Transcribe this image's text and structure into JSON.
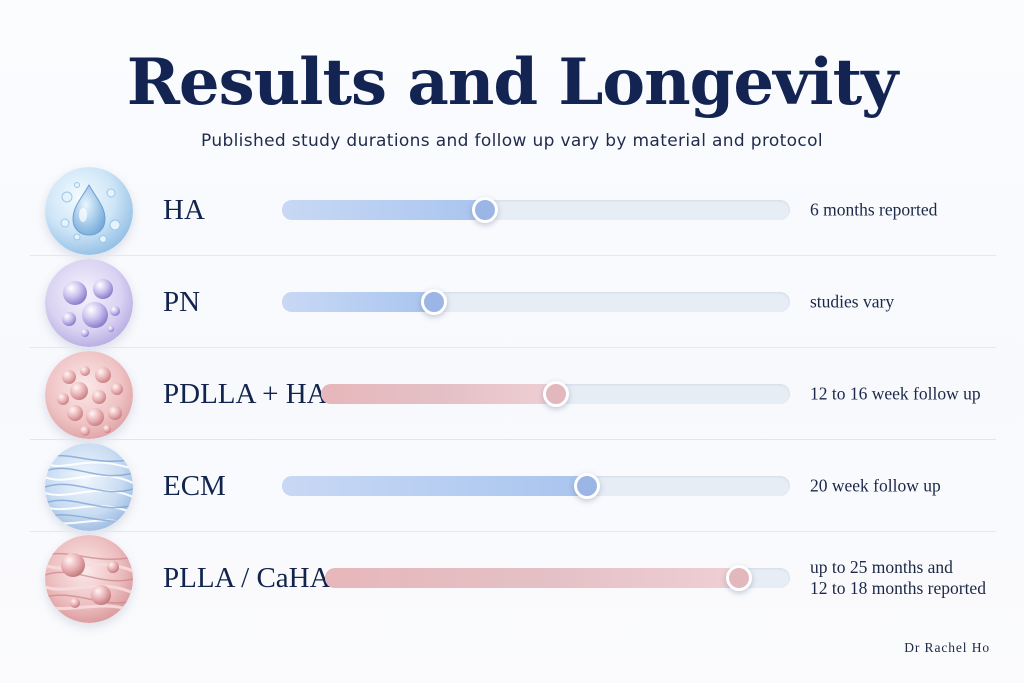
{
  "title": "Results and Longevity",
  "subtitle": "Published study durations and follow up vary by material and protocol",
  "rows": [
    {
      "label": "HA",
      "note_lines": [
        "6 months reported"
      ],
      "level": 0.4,
      "tone": "cool",
      "icon": "water-droplet-icon"
    },
    {
      "label": "PN",
      "note_lines": [
        "studies vary"
      ],
      "level": 0.3,
      "tone": "cool",
      "icon": "bubbles-icon"
    },
    {
      "label": "PDLLA + HA",
      "note_lines": [
        "12 to 16 week follow up"
      ],
      "level": 0.5,
      "tone": "warm",
      "icon": "microspheres-icon"
    },
    {
      "label": "ECM",
      "note_lines": [
        "20 week follow up"
      ],
      "level": 0.6,
      "tone": "cool",
      "icon": "fiber-mesh-icon"
    },
    {
      "label": "PLLA / CaHA",
      "note_lines": [
        "up to 25 months and",
        "12 to 18 months reported"
      ],
      "level": 0.89,
      "tone": "warm",
      "icon": "fibers-spheres-icon"
    }
  ],
  "credit": "Dr Rachel Ho",
  "colors": {
    "title": "#132452",
    "cool_fill": "#b7cef2",
    "cool_knob": "#9bb6e4",
    "warm_fill": "#e4c1c6",
    "warm_knob": "#e3b8bd",
    "track": "#e7edf5"
  }
}
